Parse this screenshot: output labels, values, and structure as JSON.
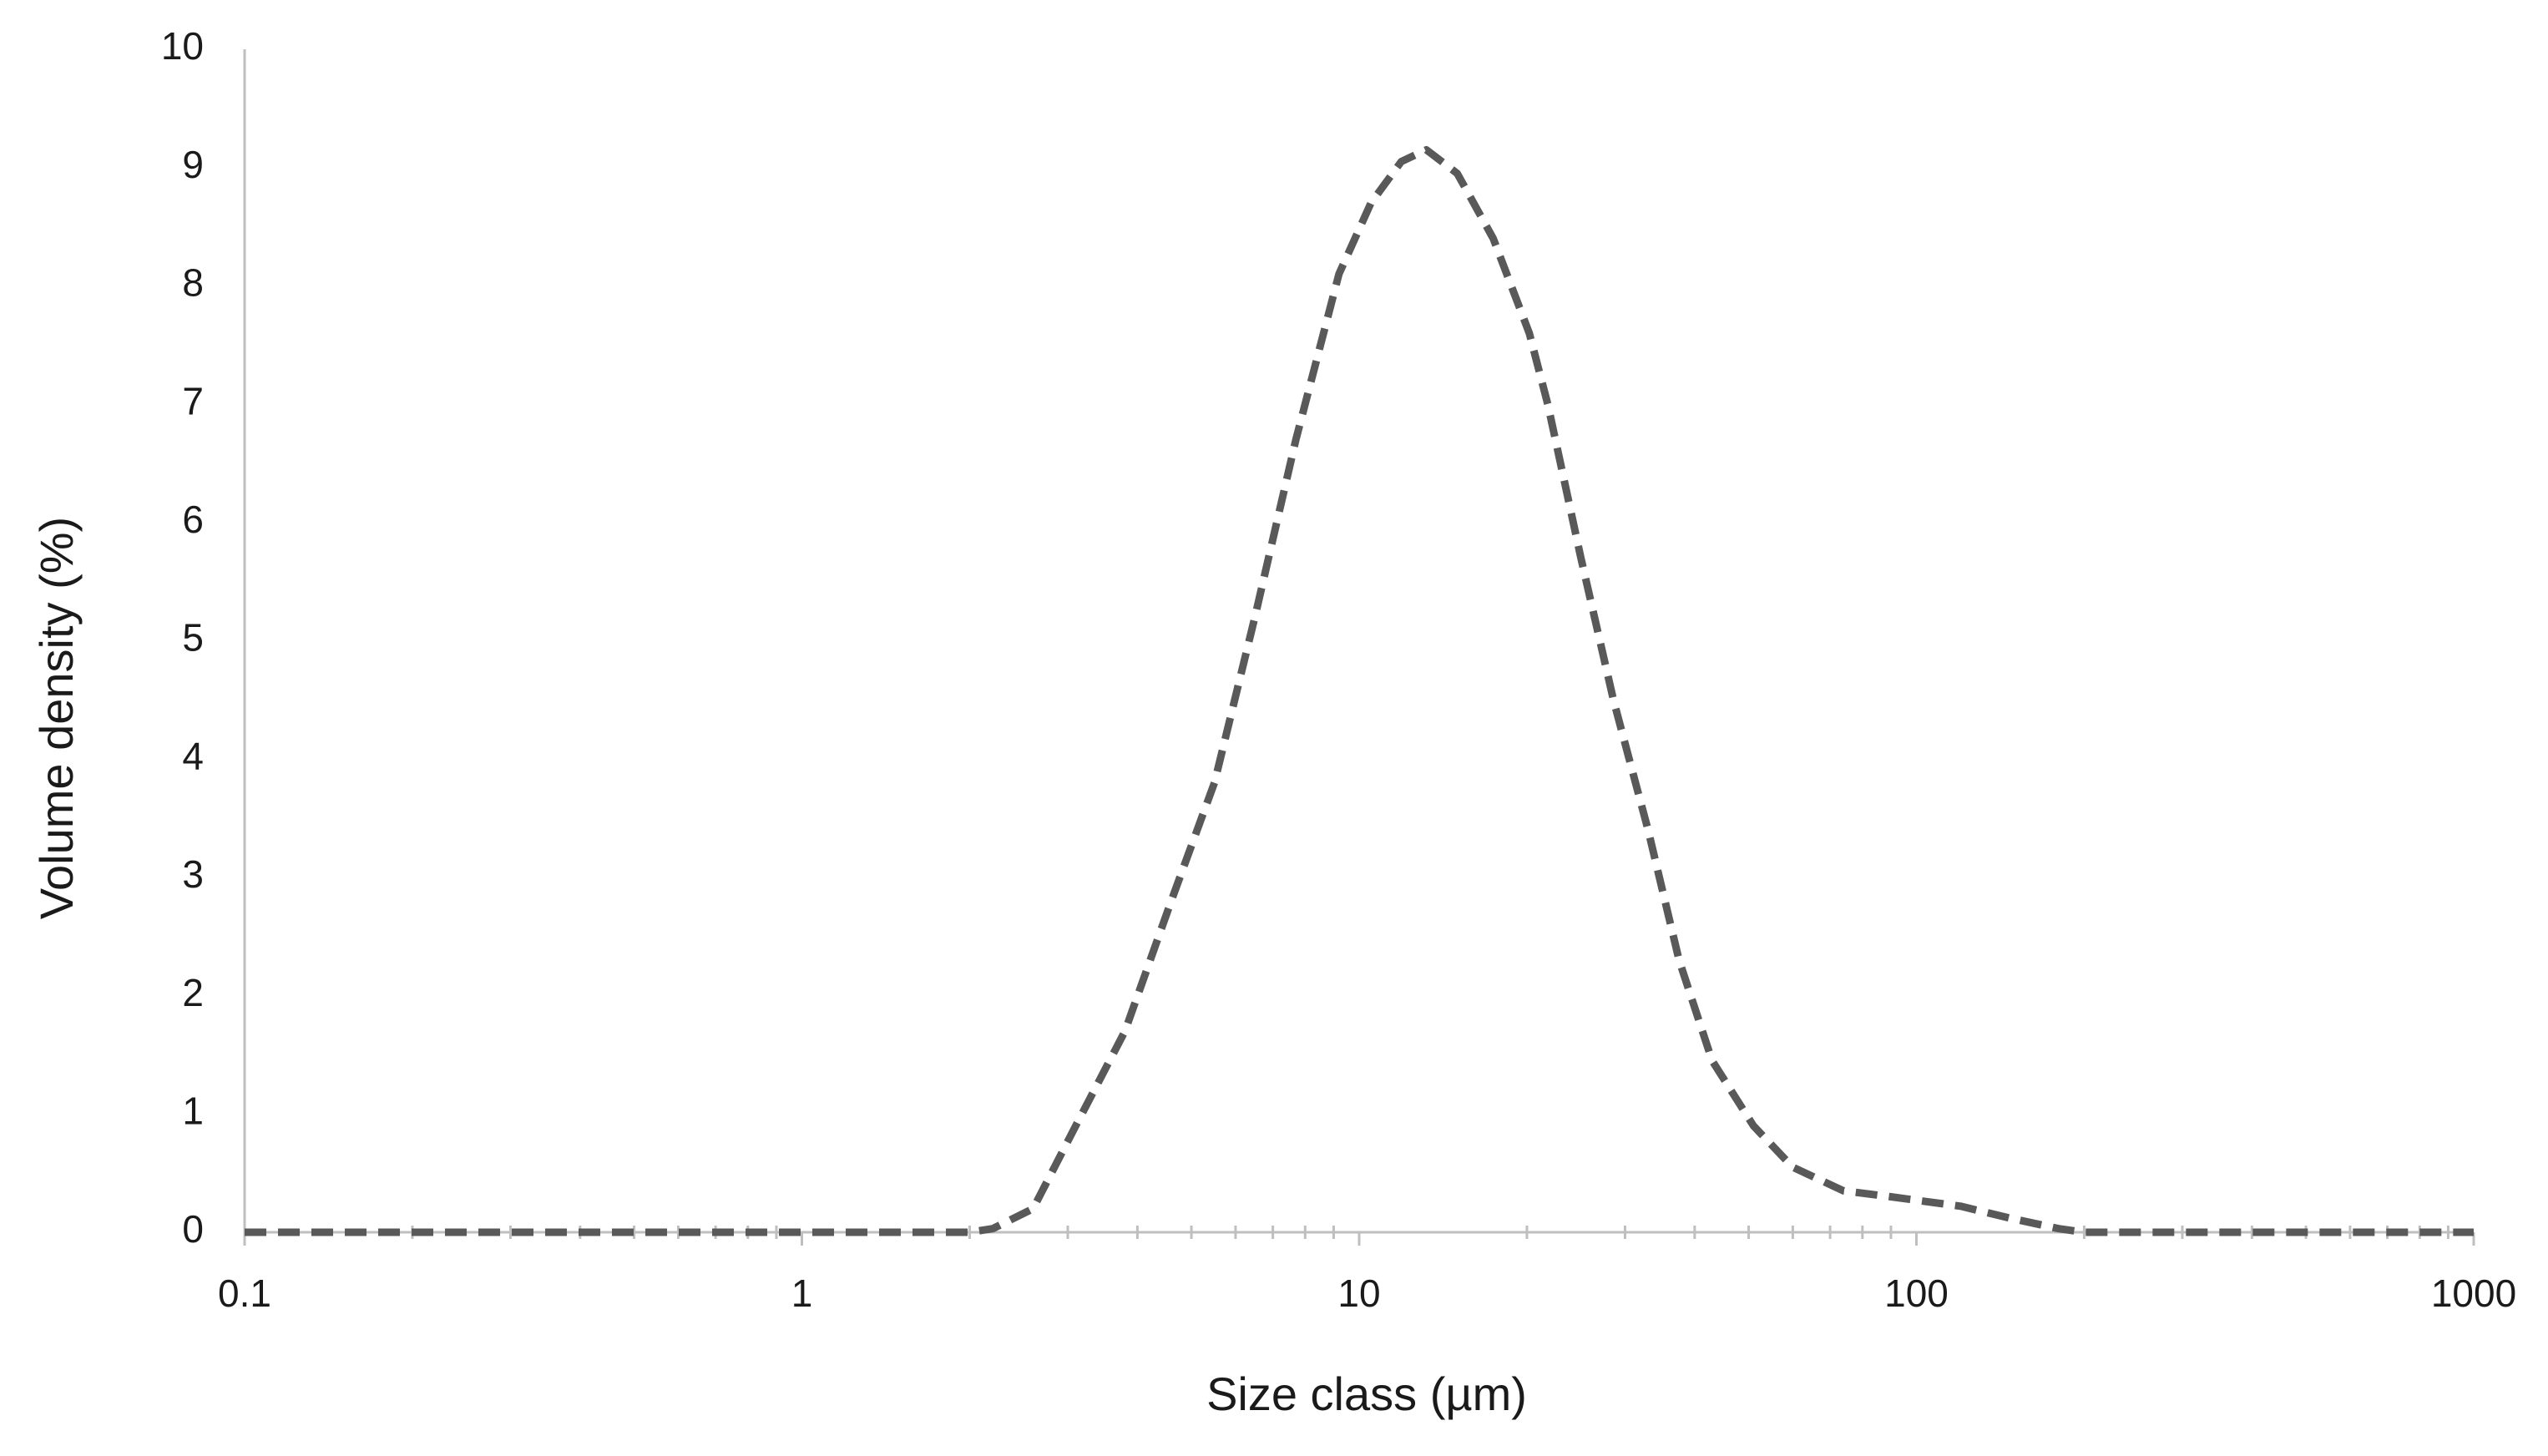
{
  "chart_data": {
    "type": "line",
    "x_label": "Size class (µm)",
    "y_label": "Volume density (%)",
    "x_log": true,
    "grid": false,
    "x": [
      0.1,
      0.2,
      0.5,
      1,
      2,
      2.2,
      2.6,
      3.1,
      3.8,
      4.6,
      5.5,
      6.5,
      7.7,
      9.2,
      10.5,
      11.9,
      13.2,
      15,
      17.4,
      20.2,
      21.8,
      25,
      28.6,
      33,
      37.5,
      43,
      51,
      60,
      74,
      90,
      120,
      147,
      180,
      200,
      500,
      1000
    ],
    "series": [
      {
        "color": "#595959",
        "values": [
          0,
          0,
          0,
          0,
          0,
          0.03,
          0.2,
          0.9,
          1.7,
          2.8,
          3.8,
          5.2,
          6.7,
          8.1,
          8.7,
          9.05,
          9.15,
          8.95,
          8.4,
          7.6,
          7.0,
          5.7,
          4.5,
          3.4,
          2.3,
          1.45,
          0.9,
          0.55,
          0.35,
          0.3,
          0.22,
          0.12,
          0.03,
          0,
          0,
          0
        ]
      }
    ],
    "xlim": [
      0.1,
      1000
    ],
    "xticks": [
      0.1,
      1,
      10,
      100,
      1000
    ],
    "ylim": [
      0,
      10
    ],
    "yticks": [
      0,
      1,
      2,
      3,
      4,
      5,
      6,
      7,
      8,
      9,
      10
    ]
  }
}
